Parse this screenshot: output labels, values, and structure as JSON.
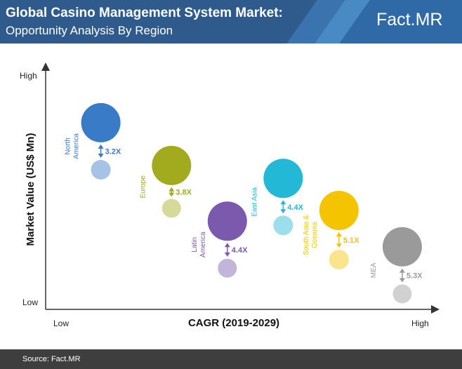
{
  "header": {
    "title": "Global Casino Management System Market:",
    "subtitle": "Opportunity Analysis By Region",
    "logo_main": "Fact",
    "logo_accent": ".MR"
  },
  "footer": {
    "source": "Source: Fact.MR"
  },
  "chart_data": {
    "type": "scatter",
    "xlabel": "CAGR (2019-2029)",
    "ylabel": "Market Value (US$ Mn)",
    "x_low": "Low",
    "x_high": "High",
    "y_low": "Low",
    "y_high": "High",
    "grid": false,
    "regions": [
      {
        "name": "North America",
        "name_lines": [
          "North",
          "America"
        ],
        "ratio": "3.2X",
        "color": "#3a7bc8",
        "x": 0.12,
        "y_current": 0.82,
        "y_future": 0.6,
        "size_current": 1.0,
        "size_future": 0.5
      },
      {
        "name": "Europe",
        "name_lines": [
          "Europe"
        ],
        "ratio": "3.8X",
        "color": "#a2ab1e",
        "x": 0.31,
        "y_current": 0.62,
        "y_future": 0.42,
        "size_current": 1.0,
        "size_future": 0.48
      },
      {
        "name": "Latin America",
        "name_lines": [
          "Latin",
          "America"
        ],
        "ratio": "4.4X",
        "color": "#7b59ad",
        "x": 0.46,
        "y_current": 0.36,
        "y_future": 0.14,
        "size_current": 1.0,
        "size_future": 0.48
      },
      {
        "name": "East Asia",
        "name_lines": [
          "East Asia"
        ],
        "ratio": "4.4X",
        "color": "#22b8d6",
        "x": 0.61,
        "y_current": 0.56,
        "y_future": 0.34,
        "size_current": 1.0,
        "size_future": 0.5
      },
      {
        "name": "South Asia & Oceania",
        "name_lines": [
          "South Asia &",
          "Oceania"
        ],
        "ratio": "5.1X",
        "color": "#f4c400",
        "x": 0.76,
        "y_current": 0.41,
        "y_future": 0.18,
        "size_current": 1.0,
        "size_future": 0.5
      },
      {
        "name": "MEA",
        "name_lines": [
          "MEA"
        ],
        "ratio": "5.3X",
        "color": "#9a9a9a",
        "x": 0.93,
        "y_current": 0.24,
        "y_future": 0.02,
        "size_current": 1.0,
        "size_future": 0.48
      }
    ]
  }
}
